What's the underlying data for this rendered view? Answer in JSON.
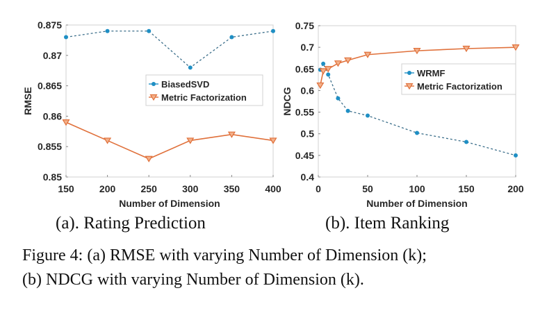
{
  "chart_data": [
    {
      "type": "line",
      "subcaption": "(a). Rating Prediction",
      "xlabel": "Number of Dimension",
      "ylabel": "RMSE",
      "xlim": [
        150,
        400
      ],
      "ylim": [
        0.85,
        0.875
      ],
      "xticks": [
        "150",
        "200",
        "250",
        "300",
        "350",
        "400"
      ],
      "yticks": [
        "0.85",
        "0.855",
        "0.86",
        "0.865",
        "0.87",
        "0.875"
      ],
      "legend": "center-right",
      "x": [
        150,
        200,
        250,
        300,
        350,
        400
      ],
      "series": [
        {
          "name": "BiasedSVD",
          "values": [
            0.873,
            0.874,
            0.874,
            0.868,
            0.873,
            0.874
          ],
          "color": "#1f8fc4",
          "style": "dashed",
          "marker": "asterisk"
        },
        {
          "name": "Metric Factorization",
          "values": [
            0.859,
            0.856,
            0.853,
            0.856,
            0.857,
            0.856
          ],
          "color": "#e0703a",
          "style": "solid",
          "marker": "triangle-down"
        }
      ]
    },
    {
      "type": "line",
      "subcaption": "(b). Item Ranking",
      "xlabel": "Number of Dimension",
      "ylabel": "NDCG",
      "xlim": [
        0,
        200
      ],
      "ylim": [
        0.4,
        0.75
      ],
      "xticks": [
        "0",
        "50",
        "100",
        "150",
        "200"
      ],
      "yticks": [
        "0.4",
        "0.45",
        "0.5",
        "0.55",
        "0.6",
        "0.65",
        "0.7",
        "0.75"
      ],
      "legend": "center-right",
      "x": [
        2,
        5,
        10,
        20,
        30,
        50,
        100,
        150,
        200
      ],
      "series": [
        {
          "name": "WRMF",
          "values": [
            0.648,
            0.662,
            0.637,
            0.582,
            0.553,
            0.542,
            0.502,
            0.481,
            0.45
          ],
          "color": "#1f8fc4",
          "style": "dashed",
          "marker": "asterisk"
        },
        {
          "name": "Metric Factorization",
          "values": [
            0.612,
            0.645,
            0.65,
            0.663,
            0.67,
            0.683,
            0.692,
            0.697,
            0.7
          ],
          "color": "#e0703a",
          "style": "solid",
          "marker": "triangle-down"
        }
      ]
    }
  ],
  "figure_caption": {
    "line1": "Figure 4: (a) RMSE with varying Number of Dimension (k);",
    "line2": "(b) NDCG with varying Number of Dimension (k)."
  }
}
